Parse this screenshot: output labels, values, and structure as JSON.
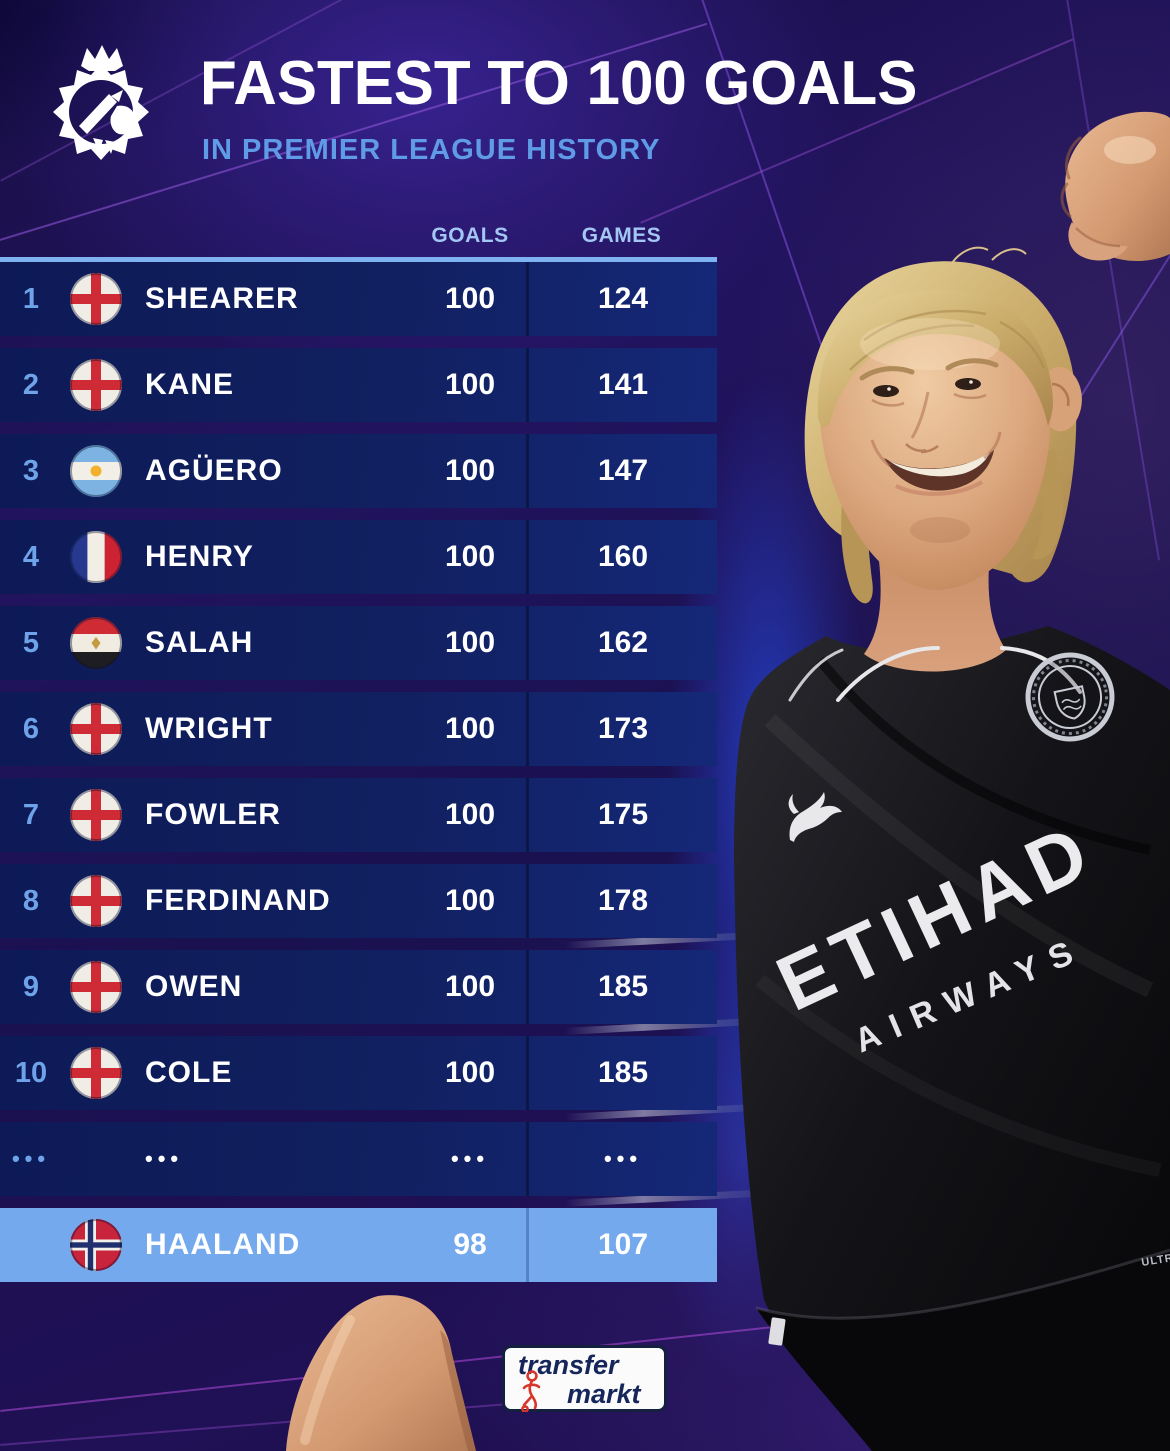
{
  "header": {
    "title": "FASTEST TO 100 GOALS",
    "subtitle": "IN PREMIER LEAGUE HISTORY"
  },
  "columns": {
    "goals": "GOALS",
    "games": "GAMES"
  },
  "rows": [
    {
      "rank": "1",
      "flag": "england",
      "name": "SHEARER",
      "goals": "100",
      "games": "124"
    },
    {
      "rank": "2",
      "flag": "england",
      "name": "KANE",
      "goals": "100",
      "games": "141"
    },
    {
      "rank": "3",
      "flag": "argentina",
      "name": "AGÜERO",
      "goals": "100",
      "games": "147"
    },
    {
      "rank": "4",
      "flag": "france",
      "name": "HENRY",
      "goals": "100",
      "games": "160"
    },
    {
      "rank": "5",
      "flag": "egypt",
      "name": "SALAH",
      "goals": "100",
      "games": "162"
    },
    {
      "rank": "6",
      "flag": "england",
      "name": "WRIGHT",
      "goals": "100",
      "games": "173"
    },
    {
      "rank": "7",
      "flag": "england",
      "name": "FOWLER",
      "goals": "100",
      "games": "175"
    },
    {
      "rank": "8",
      "flag": "england",
      "name": "FERDINAND",
      "goals": "100",
      "games": "178"
    },
    {
      "rank": "9",
      "flag": "england",
      "name": "OWEN",
      "goals": "100",
      "games": "185"
    },
    {
      "rank": "10",
      "flag": "england",
      "name": "COLE",
      "goals": "100",
      "games": "185"
    },
    {
      "rank": "...",
      "flag": "",
      "name": "...",
      "goals": "...",
      "games": "..."
    }
  ],
  "highlight": {
    "flag": "norway",
    "name": "HAALAND",
    "goals": "98",
    "games": "107"
  },
  "jersey": {
    "sponsor_line1": "ETIHAD",
    "sponsor_line2": "AIRWAYS",
    "tag": "ULTR"
  },
  "footer": {
    "brand_top": "transfer",
    "brand_bottom": "markt"
  },
  "colors": {
    "accent_light_blue": "#6FA3E9",
    "row_navy": "#101D5F",
    "games_cell_blue": "#6CA1E7",
    "highlight_row_blue": "#74A9EE",
    "subtitle_blue": "#5F9BE6",
    "background_purple": "#22135F",
    "line_magenta": "#A855E0"
  }
}
